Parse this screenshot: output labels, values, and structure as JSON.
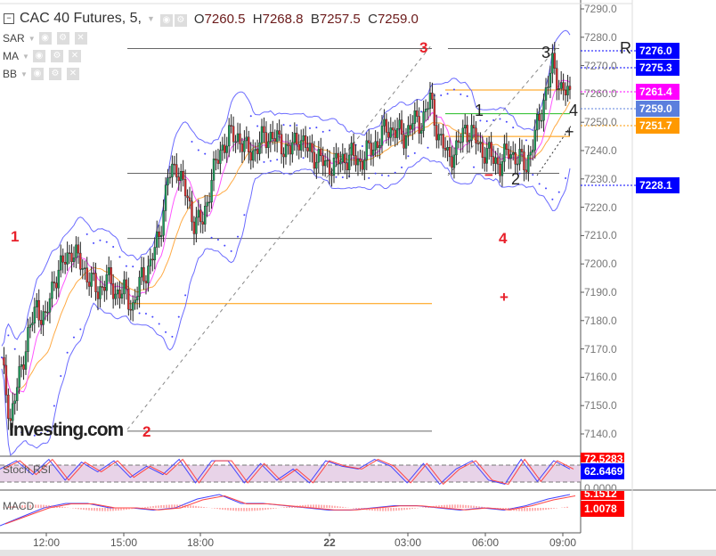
{
  "header": {
    "symbol": "CAC 40 Futures, 5,",
    "open": "7260.5",
    "high": "7268.8",
    "low": "7257.5",
    "close": "7259.0",
    "o": "O",
    "h": "H",
    "b": "B",
    "c": "C"
  },
  "indicators": [
    {
      "label": "SAR"
    },
    {
      "label": "MA"
    },
    {
      "label": "BB"
    }
  ],
  "price_axis": [
    "7290.0",
    "7280.0",
    "7270.0",
    "7260.0",
    "7250.0",
    "7240.0",
    "7230.0",
    "7220.0",
    "7210.0",
    "7200.0",
    "7190.0",
    "7180.0",
    "7170.0",
    "7160.0",
    "7150.0",
    "7140.0"
  ],
  "price_tags": [
    {
      "value": "7276.0",
      "color": "#0000ff"
    },
    {
      "value": "7275.3",
      "color": "#0000ff"
    },
    {
      "value": "7261.4",
      "color": "#ff00ff"
    },
    {
      "value": "7259.0",
      "color": "#5b7fdd"
    },
    {
      "value": "7251.7",
      "color": "#ff9900"
    },
    {
      "value": "7228.1",
      "color": "#0000ff"
    }
  ],
  "time_axis": [
    "12:00",
    "15:00",
    "18:00",
    "22",
    "03:00",
    "06:00",
    "09:00"
  ],
  "annotations": {
    "r1": "1",
    "r2": "2",
    "r3": "3",
    "r4": "4",
    "rplus": "+",
    "rminus": "−",
    "b1": "1",
    "b2": "2",
    "b3": "3",
    "b4": "4",
    "bplus": "+",
    "R": "R"
  },
  "logo": "Investing.com",
  "stoch": {
    "label": "Stoch RSI",
    "upper": "72.5283",
    "value": "62.6469",
    "lower": "0.0000",
    "upper_color": "#ff0000",
    "value_color": "#0000ff"
  },
  "macd": {
    "label": "MACD",
    "signal": "5.1512",
    "value": "1.0078",
    "color": "#ff0000"
  },
  "chart_data": {
    "type": "candlestick",
    "ylim": [
      7135,
      7292
    ],
    "closes": [
      7165,
      7145,
      7160,
      7175,
      7185,
      7180,
      7195,
      7200,
      7205,
      7200,
      7195,
      7190,
      7195,
      7190,
      7190,
      7185,
      7195,
      7200,
      7210,
      7230,
      7235,
      7225,
      7215,
      7215,
      7230,
      7240,
      7245,
      7245,
      7240,
      7240,
      7245,
      7245,
      7242,
      7240,
      7245,
      7240,
      7238,
      7235,
      7235,
      7237,
      7238,
      7236,
      7240,
      7243,
      7248,
      7247,
      7245,
      7250,
      7250,
      7258,
      7245,
      7238,
      7240,
      7248,
      7245,
      7240,
      7238,
      7235,
      7240,
      7237,
      7235,
      7245,
      7258,
      7270,
      7262,
      7259
    ],
    "levels": [
      7276,
      7261.4,
      7253,
      7245,
      7232,
      7209,
      7186,
      7141
    ],
    "stoch_values": [
      60,
      90,
      40,
      95,
      20,
      85,
      50,
      90,
      30,
      70,
      40,
      95,
      10,
      90,
      90,
      10,
      80,
      20,
      60,
      10,
      90,
      70,
      60,
      95,
      70,
      10,
      80,
      5,
      60,
      90,
      20,
      5,
      95,
      15,
      90,
      60
    ],
    "macd_values": [
      -4,
      -2,
      0,
      1,
      1,
      0,
      0,
      -0.5,
      0,
      2,
      3,
      1,
      1,
      0.5,
      0,
      -0.5,
      -0.5,
      0,
      0.5,
      0.5,
      0,
      -0.5,
      0,
      -0.5,
      0.5,
      2,
      3
    ]
  }
}
